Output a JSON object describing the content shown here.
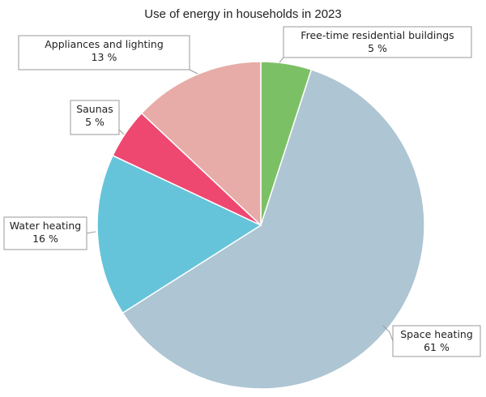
{
  "chart_data": {
    "type": "pie",
    "title": "Use of energy in households in 2023",
    "unit": "%",
    "slices": [
      {
        "label": "Free-time residential buildings",
        "value_label": "5 %",
        "value": 5,
        "color": "#7cc066"
      },
      {
        "label": "Space heating",
        "value_label": "61 %",
        "value": 61,
        "color": "#aec5d3"
      },
      {
        "label": "Water heating",
        "value_label": "16 %",
        "value": 16,
        "color": "#66c4da"
      },
      {
        "label": "Saunas",
        "value_label": "5 %",
        "value": 5,
        "color": "#ee4770"
      },
      {
        "label": "Appliances and lighting",
        "value_label": "13 %",
        "value": 13,
        "color": "#e7aca7"
      }
    ],
    "start": "12 o'clock",
    "direction": "clockwise"
  }
}
